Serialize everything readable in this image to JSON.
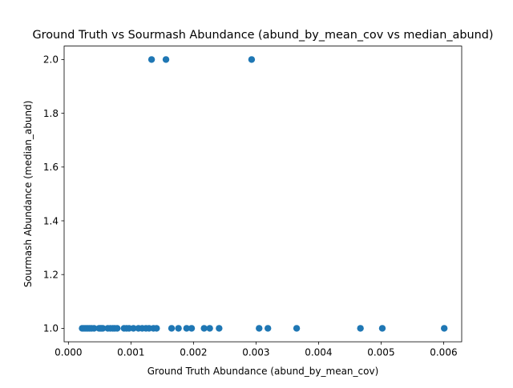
{
  "chart_data": {
    "type": "scatter",
    "title": "Ground Truth vs Sourmash Abundance (abund_by_mean_cov vs median_abund)",
    "xlabel": "Ground Truth Abundance (abund_by_mean_cov)",
    "ylabel": "Sourmash Abundance (median_abund)",
    "xlim": [
      -6.85e-05,
      0.0062895
    ],
    "ylim": [
      0.95,
      2.05
    ],
    "xticks": [
      0.0,
      0.001,
      0.002,
      0.003,
      0.004,
      0.005,
      0.006
    ],
    "xtick_labels": [
      "0.000",
      "0.001",
      "0.002",
      "0.003",
      "0.004",
      "0.005",
      "0.006"
    ],
    "yticks": [
      1.0,
      1.2,
      1.4,
      1.6,
      1.8,
      2.0
    ],
    "ytick_labels": [
      "1.0",
      "1.2",
      "1.4",
      "1.6",
      "1.8",
      "2.0"
    ],
    "grid": false,
    "legend": "none",
    "marker_color": "#1f77b4",
    "points": [
      {
        "x": 0.00022,
        "y": 1.0
      },
      {
        "x": 0.00025,
        "y": 1.0
      },
      {
        "x": 0.00028,
        "y": 1.0
      },
      {
        "x": 0.00031,
        "y": 1.0
      },
      {
        "x": 0.00034,
        "y": 1.0
      },
      {
        "x": 0.00037,
        "y": 1.0
      },
      {
        "x": 0.00041,
        "y": 1.0
      },
      {
        "x": 0.00049,
        "y": 1.0
      },
      {
        "x": 0.00051,
        "y": 1.0
      },
      {
        "x": 0.00053,
        "y": 1.0
      },
      {
        "x": 0.00055,
        "y": 1.0
      },
      {
        "x": 0.00063,
        "y": 1.0
      },
      {
        "x": 0.00067,
        "y": 1.0
      },
      {
        "x": 0.00071,
        "y": 1.0
      },
      {
        "x": 0.00074,
        "y": 1.0
      },
      {
        "x": 0.00078,
        "y": 1.0
      },
      {
        "x": 0.00089,
        "y": 1.0
      },
      {
        "x": 0.00093,
        "y": 1.0
      },
      {
        "x": 0.00097,
        "y": 1.0
      },
      {
        "x": 0.00104,
        "y": 1.0
      },
      {
        "x": 0.00112,
        "y": 1.0
      },
      {
        "x": 0.00118,
        "y": 1.0
      },
      {
        "x": 0.00124,
        "y": 1.0
      },
      {
        "x": 0.00129,
        "y": 1.0
      },
      {
        "x": 0.00136,
        "y": 1.0
      },
      {
        "x": 0.00141,
        "y": 1.0
      },
      {
        "x": 0.00165,
        "y": 1.0
      },
      {
        "x": 0.00176,
        "y": 1.0
      },
      {
        "x": 0.00189,
        "y": 1.0
      },
      {
        "x": 0.00197,
        "y": 1.0
      },
      {
        "x": 0.00217,
        "y": 1.0
      },
      {
        "x": 0.00226,
        "y": 1.0
      },
      {
        "x": 0.00241,
        "y": 1.0
      },
      {
        "x": 0.00305,
        "y": 1.0
      },
      {
        "x": 0.00319,
        "y": 1.0
      },
      {
        "x": 0.00365,
        "y": 1.0
      },
      {
        "x": 0.00467,
        "y": 1.0
      },
      {
        "x": 0.00502,
        "y": 1.0
      },
      {
        "x": 0.00601,
        "y": 1.0
      },
      {
        "x": 0.00133,
        "y": 2.0
      },
      {
        "x": 0.00156,
        "y": 2.0
      },
      {
        "x": 0.00293,
        "y": 2.0
      }
    ]
  }
}
